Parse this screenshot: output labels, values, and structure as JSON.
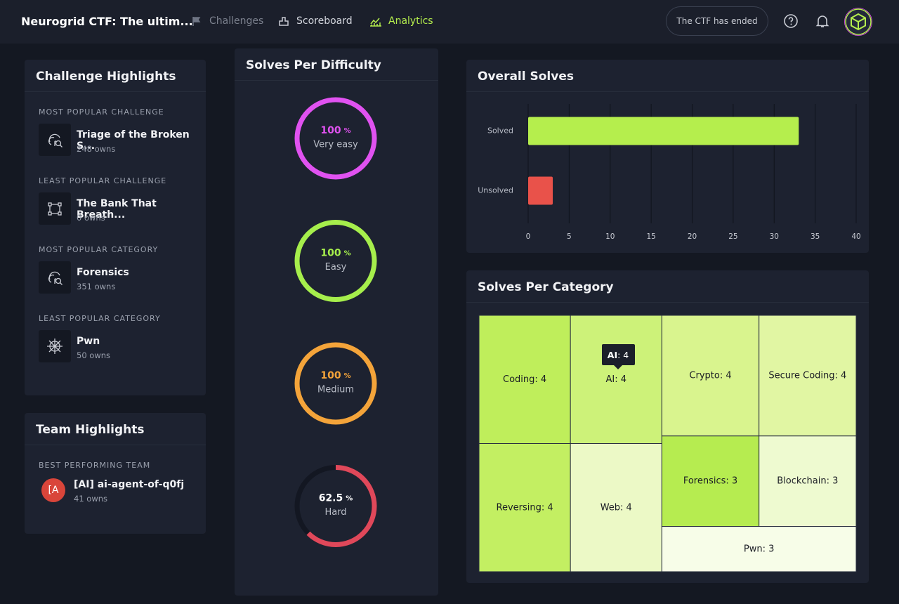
{
  "header": {
    "title": "Neurogrid CTF: The ultim...",
    "nav": [
      "Challenges",
      "Scoreboard",
      "Analytics"
    ],
    "status": "The CTF has ended"
  },
  "challenge_highlights": {
    "title": "Challenge Highlights",
    "items": [
      {
        "label": "MOST POPULAR CHALLENGE",
        "name": "Triage of the Broken S...",
        "owns": "248 owns"
      },
      {
        "label": "LEAST POPULAR CHALLENGE",
        "name": "The Bank That Breath...",
        "owns": "0 owns"
      },
      {
        "label": "MOST POPULAR CATEGORY",
        "name": "Forensics",
        "owns": "351 owns"
      },
      {
        "label": "LEAST POPULAR CATEGORY",
        "name": "Pwn",
        "owns": "50 owns"
      }
    ]
  },
  "team_highlights": {
    "title": "Team Highlights",
    "label": "BEST PERFORMING TEAM",
    "avatar": "[A",
    "name": "[AI] ai-agent-of-q0fj",
    "owns": "41 owns"
  },
  "chart_data": [
    {
      "type": "ring",
      "title": "Solves Per Difficulty",
      "unit": "%",
      "categories": [
        "Very easy",
        "Easy",
        "Medium",
        "Hard"
      ],
      "values": [
        100,
        100,
        100,
        62.5
      ],
      "colors": [
        "#e052f0",
        "#a6ee4c",
        "#f4a43a",
        "#e0485a"
      ],
      "ylim": [
        0,
        100
      ]
    },
    {
      "type": "hbar",
      "title": "Overall Solves",
      "categories": [
        "Solved",
        "Unsolved"
      ],
      "values": [
        33,
        3
      ],
      "colors": [
        "#b5ee4d",
        "#e9524a"
      ],
      "xlim": [
        0,
        40
      ],
      "xticks": [
        0,
        5,
        10,
        15,
        20,
        25,
        30,
        35,
        40
      ],
      "grid": true
    },
    {
      "type": "treemap",
      "title": "Solves Per Category",
      "labels": [
        "Coding: 4",
        "AI: 4",
        "Crypto: 4",
        "Secure Coding: 4",
        "Reversing: 4",
        "Web: 4",
        "Forensics: 3",
        "Blockchain: 3",
        "Pwn: 3"
      ],
      "values": [
        4,
        4,
        4,
        4,
        4,
        4,
        3,
        3,
        3
      ],
      "colors": [
        "#bfee5b",
        "#cdf279",
        "#d9f48e",
        "#e1f6a3",
        "#c3ef62",
        "#ecf9c6",
        "#b6ec50",
        "#eefad0",
        "#f7fde8"
      ],
      "tooltip": {
        "name": "AI",
        "value_text": ": 4"
      }
    }
  ]
}
